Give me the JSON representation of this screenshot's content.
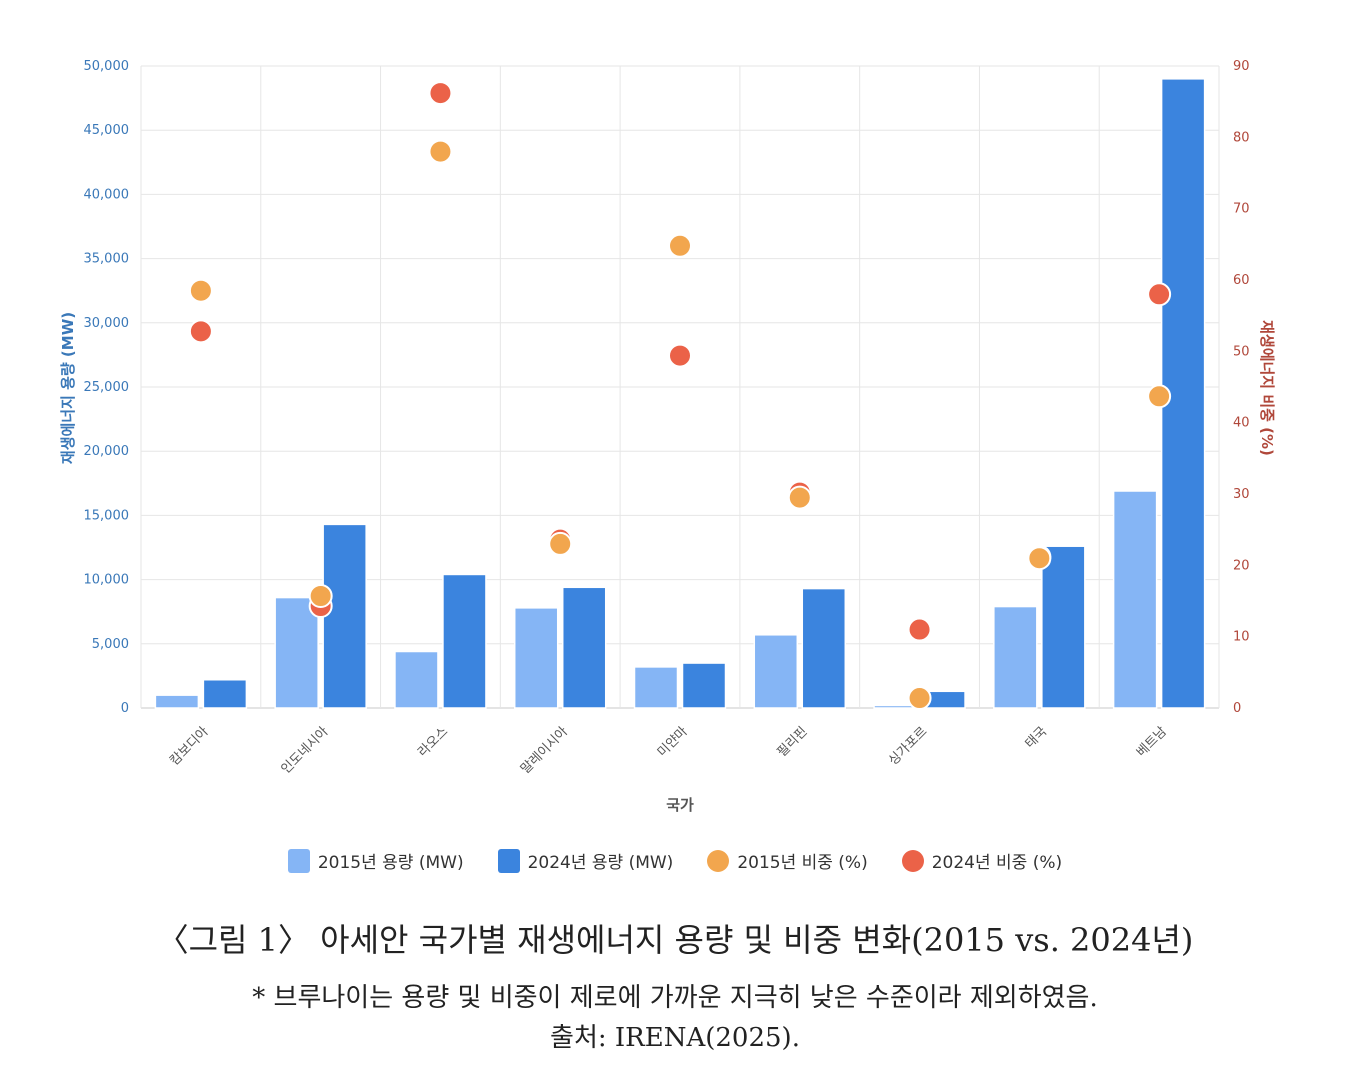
{
  "chart_data": {
    "type": "bar",
    "categories": [
      "캄보디아",
      "인도네시아",
      "라오스",
      "말레이시아",
      "미얀마",
      "필리핀",
      "싱가포르",
      "태국",
      "베트남"
    ],
    "series": [
      {
        "name": "2015년 용량 (MW)",
        "kind": "bar",
        "axis": "left",
        "color": "#85b5f5",
        "values": [
          1000,
          8600,
          4400,
          7800,
          3200,
          5700,
          200,
          7900,
          16900
        ]
      },
      {
        "name": "2024년 용량 (MW)",
        "kind": "bar",
        "axis": "left",
        "color": "#3b84de",
        "values": [
          2200,
          14300,
          10400,
          9400,
          3500,
          9300,
          1300,
          12600,
          49000
        ]
      },
      {
        "name": "2015년 비중 (%)",
        "kind": "scatter",
        "axis": "right",
        "color": "#f2a64e",
        "values": [
          58.5,
          15.7,
          78,
          23,
          64.8,
          29.5,
          1.4,
          21,
          43.7
        ]
      },
      {
        "name": "2024년 비중 (%)",
        "kind": "scatter",
        "axis": "right",
        "color": "#eb6248",
        "values": [
          52.8,
          14.3,
          86.2,
          23.6,
          49.4,
          30.2,
          11,
          21.2,
          58
        ]
      }
    ],
    "xlabel": "국가",
    "ylabel": "재생에너지 용량 (MW)",
    "y2label": "재생에너지 비중 (%)",
    "ylim": [
      0,
      50000
    ],
    "y2lim": [
      0,
      90
    ],
    "yticks": [
      "0",
      "5,000",
      "10,000",
      "15,000",
      "20,000",
      "25,000",
      "30,000",
      "35,000",
      "40,000",
      "45,000",
      "50,000"
    ],
    "y2ticks": [
      "0",
      "10",
      "20",
      "30",
      "40",
      "50",
      "60",
      "70",
      "80",
      "90"
    ],
    "grid": true,
    "legend_position": "bottom"
  },
  "legend": [
    {
      "label": "2015년 용량 (MW)",
      "shape": "rect",
      "color": "#85b5f5"
    },
    {
      "label": "2024년 용량 (MW)",
      "shape": "rect",
      "color": "#3b84de"
    },
    {
      "label": "2015년 비중 (%)",
      "shape": "dot",
      "color": "#f2a64e"
    },
    {
      "label": "2024년 비중 (%)",
      "shape": "dot",
      "color": "#eb6248"
    }
  ],
  "caption": {
    "title": "〈그림 1〉 아세안 국가별 재생에너지 용량 및 비중 변화(2015 vs. 2024년)",
    "note": "* 브루나이는 용량 및 비중이 제로에 가까운 지극히 낮은 수준이라 제외하였음.",
    "source": "출처: IRENA(2025)."
  }
}
